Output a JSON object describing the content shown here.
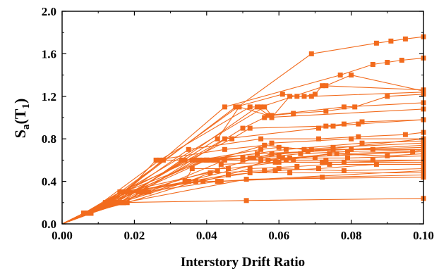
{
  "chart_data": {
    "type": "line",
    "title": "",
    "xlabel": "Interstory Drift Ratio",
    "ylabel": {
      "main": "S",
      "sub_a": "a",
      "paren_open": "(T",
      "sub_1": "1",
      "paren_close": ")"
    },
    "xlim": [
      0.0,
      0.1
    ],
    "ylim": [
      0.0,
      2.0
    ],
    "xticks": [
      "0.00",
      "0.02",
      "0.04",
      "0.06",
      "0.08",
      "0.10"
    ],
    "yticks": [
      "0.0",
      "0.4",
      "0.8",
      "1.2",
      "1.6",
      "2.0"
    ],
    "grid": false,
    "legend": "none",
    "marker": "square",
    "color": "#f26b1d",
    "series": [
      {
        "x": [
          0,
          0.006,
          0.012,
          0.069,
          0.087,
          0.091,
          0.095,
          0.1
        ],
        "y": [
          0,
          0.1,
          0.2,
          1.6,
          1.7,
          1.72,
          1.74,
          1.76
        ]
      },
      {
        "x": [
          0,
          0.007,
          0.014,
          0.045,
          0.077,
          0.086,
          0.09,
          0.094,
          0.1
        ],
        "y": [
          0,
          0.1,
          0.2,
          1.1,
          1.4,
          1.5,
          1.52,
          1.54,
          1.56
        ]
      },
      {
        "x": [
          0,
          0.006,
          0.013,
          0.048,
          0.061,
          0.065,
          0.067,
          0.07,
          0.072,
          0.1
        ],
        "y": [
          0,
          0.1,
          0.2,
          1.1,
          1.22,
          1.2,
          1.2,
          1.22,
          1.3,
          1.26
        ]
      },
      {
        "x": [
          0,
          0.007,
          0.027,
          0.052,
          0.055,
          0.073,
          0.08,
          0.1
        ],
        "y": [
          0,
          0.1,
          0.6,
          1.1,
          1.1,
          1.3,
          1.4,
          1.25
        ]
      },
      {
        "x": [
          0,
          0.008,
          0.016,
          0.054,
          0.058,
          0.063,
          0.069,
          0.1
        ],
        "y": [
          0,
          0.1,
          0.2,
          1.1,
          1.0,
          1.2,
          1.2,
          1.24
        ]
      },
      {
        "x": [
          0,
          0.006,
          0.012,
          0.056,
          0.058,
          0.064,
          0.073,
          0.081,
          0.09,
          0.1
        ],
        "y": [
          0,
          0.1,
          0.2,
          1.1,
          1.02,
          1.04,
          1.06,
          1.1,
          1.2,
          1.22
        ]
      },
      {
        "x": [
          0,
          0.007,
          0.015,
          0.043,
          0.049,
          0.057,
          0.078,
          0.1
        ],
        "y": [
          0,
          0.1,
          0.2,
          0.8,
          1.1,
          1.02,
          1.1,
          1.14
        ]
      },
      {
        "x": [
          0,
          0.008,
          0.017,
          0.05,
          0.056,
          0.1
        ],
        "y": [
          0,
          0.1,
          0.2,
          0.9,
          1.0,
          1.08
        ]
      },
      {
        "x": [
          0,
          0.006,
          0.014,
          0.045,
          0.071,
          0.075,
          0.082,
          0.1
        ],
        "y": [
          0,
          0.1,
          0.2,
          0.8,
          0.9,
          0.92,
          0.94,
          0.98
        ]
      },
      {
        "x": [
          0,
          0.007,
          0.017,
          0.047,
          0.052,
          0.073,
          0.078,
          0.083,
          0.1
        ],
        "y": [
          0,
          0.1,
          0.3,
          0.8,
          0.9,
          0.92,
          0.94,
          0.96,
          0.98
        ]
      },
      {
        "x": [
          0,
          0.008,
          0.018,
          0.035,
          0.055,
          0.071,
          0.082,
          0.095,
          0.1
        ],
        "y": [
          0,
          0.1,
          0.3,
          0.7,
          0.8,
          0.8,
          0.82,
          0.84,
          0.86
        ]
      },
      {
        "x": [
          0,
          0.006,
          0.013,
          0.028,
          0.042,
          0.058,
          0.08,
          0.1
        ],
        "y": [
          0,
          0.1,
          0.2,
          0.6,
          0.6,
          0.76,
          0.8,
          0.8
        ]
      },
      {
        "x": [
          0,
          0.007,
          0.016,
          0.036,
          0.04,
          0.062,
          0.083,
          0.1
        ],
        "y": [
          0,
          0.1,
          0.3,
          0.6,
          0.6,
          0.7,
          0.76,
          0.78
        ]
      },
      {
        "x": [
          0,
          0.008,
          0.015,
          0.026,
          0.045,
          0.056,
          0.067,
          0.075,
          0.1
        ],
        "y": [
          0,
          0.1,
          0.2,
          0.6,
          0.7,
          0.74,
          0.7,
          0.72,
          0.76
        ]
      },
      {
        "x": [
          0,
          0.006,
          0.014,
          0.038,
          0.055,
          0.06,
          0.069,
          0.08,
          0.1
        ],
        "y": [
          0,
          0.1,
          0.2,
          0.6,
          0.7,
          0.72,
          0.7,
          0.7,
          0.72
        ]
      },
      {
        "x": [
          0,
          0.007,
          0.016,
          0.037,
          0.054,
          0.068,
          0.075,
          0.086,
          0.1
        ],
        "y": [
          0,
          0.1,
          0.2,
          0.6,
          0.66,
          0.68,
          0.7,
          0.7,
          0.7
        ]
      },
      {
        "x": [
          0,
          0.008,
          0.017,
          0.04,
          0.053,
          0.06,
          0.066,
          0.079,
          0.1
        ],
        "y": [
          0,
          0.1,
          0.3,
          0.6,
          0.62,
          0.64,
          0.66,
          0.68,
          0.7
        ]
      },
      {
        "x": [
          0,
          0.006,
          0.015,
          0.034,
          0.05,
          0.055,
          0.063,
          0.076,
          0.097,
          0.1
        ],
        "y": [
          0,
          0.1,
          0.2,
          0.6,
          0.62,
          0.6,
          0.62,
          0.66,
          0.68,
          0.7
        ]
      },
      {
        "x": [
          0,
          0.007,
          0.013,
          0.039,
          0.041,
          0.05,
          0.062,
          0.074,
          0.09,
          0.1
        ],
        "y": [
          0,
          0.1,
          0.2,
          0.6,
          0.6,
          0.6,
          0.6,
          0.66,
          0.64,
          0.66
        ]
      },
      {
        "x": [
          0,
          0.008,
          0.014,
          0.04,
          0.043,
          0.052,
          0.07,
          0.079,
          0.1
        ],
        "y": [
          0,
          0.1,
          0.2,
          0.6,
          0.6,
          0.62,
          0.62,
          0.62,
          0.64
        ]
      },
      {
        "x": [
          0,
          0.006,
          0.016,
          0.033,
          0.042,
          0.057,
          0.064,
          0.073,
          0.086,
          0.1
        ],
        "y": [
          0,
          0.1,
          0.2,
          0.6,
          0.6,
          0.6,
          0.6,
          0.6,
          0.6,
          0.6
        ]
      },
      {
        "x": [
          0,
          0.007,
          0.017,
          0.043,
          0.044,
          0.059,
          0.072,
          0.078,
          0.1
        ],
        "y": [
          0,
          0.1,
          0.3,
          0.5,
          0.56,
          0.58,
          0.58,
          0.58,
          0.6
        ]
      },
      {
        "x": [
          0,
          0.008,
          0.015,
          0.034,
          0.036,
          0.046,
          0.06,
          0.073,
          0.1
        ],
        "y": [
          0,
          0.1,
          0.2,
          0.4,
          0.52,
          0.52,
          0.58,
          0.58,
          0.58
        ]
      },
      {
        "x": [
          0,
          0.006,
          0.017,
          0.039,
          0.052,
          0.065,
          0.074,
          0.1
        ],
        "y": [
          0,
          0.1,
          0.3,
          0.4,
          0.52,
          0.54,
          0.56,
          0.56
        ]
      },
      {
        "x": [
          0,
          0.007,
          0.018,
          0.035,
          0.046,
          0.059,
          0.071,
          0.087,
          0.1
        ],
        "y": [
          0,
          0.1,
          0.3,
          0.4,
          0.46,
          0.5,
          0.52,
          0.56,
          0.56
        ]
      },
      {
        "x": [
          0,
          0.008,
          0.016,
          0.035,
          0.041,
          0.056,
          0.06,
          0.078,
          0.1
        ],
        "y": [
          0,
          0.1,
          0.2,
          0.4,
          0.48,
          0.5,
          0.52,
          0.5,
          0.52
        ]
      },
      {
        "x": [
          0,
          0.006,
          0.018,
          0.037,
          0.052,
          0.063,
          0.1
        ],
        "y": [
          0,
          0.1,
          0.3,
          0.4,
          0.48,
          0.48,
          0.48
        ]
      },
      {
        "x": [
          0,
          0.007,
          0.018,
          0.037,
          0.044,
          0.072,
          0.1
        ],
        "y": [
          0,
          0.1,
          0.2,
          0.4,
          0.4,
          0.44,
          0.46
        ]
      },
      {
        "x": [
          0,
          0.008,
          0.017,
          0.051,
          0.1
        ],
        "y": [
          0,
          0.1,
          0.2,
          0.42,
          0.44
        ]
      },
      {
        "x": [
          0,
          0.006,
          0.015,
          0.051,
          0.1
        ],
        "y": [
          0,
          0.1,
          0.2,
          0.22,
          0.24
        ]
      },
      {
        "x": [
          0,
          0.007,
          0.018,
          0.023,
          0.043,
          0.1
        ],
        "y": [
          0,
          0.1,
          0.3,
          0.3,
          0.4,
          0.5
        ]
      },
      {
        "x": [
          0,
          0.008,
          0.015,
          0.024,
          0.045,
          0.1
        ],
        "y": [
          0,
          0.1,
          0.2,
          0.3,
          0.6,
          0.8
        ]
      },
      {
        "x": [
          0,
          0.006,
          0.016,
          0.021,
          0.058,
          0.1
        ],
        "y": [
          0,
          0.1,
          0.3,
          0.3,
          0.66,
          0.74
        ]
      },
      {
        "x": [
          0,
          0.007,
          0.017,
          0.022,
          0.061,
          0.1
        ],
        "y": [
          0,
          0.1,
          0.2,
          0.3,
          0.62,
          0.68
        ]
      }
    ]
  }
}
